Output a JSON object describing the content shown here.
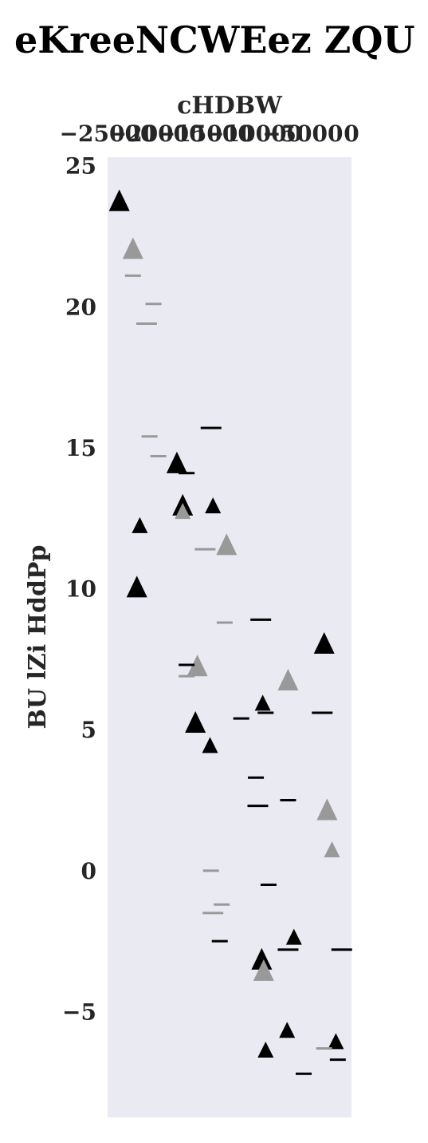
{
  "chart_data": {
    "type": "scatter",
    "title": "eKreeNCWEez ZQU",
    "xlabel": "cHDBW",
    "ylabel": "BU  lZi HddPp",
    "xlim": [
      -25000,
      0
    ],
    "ylim": [
      -8.75,
      25.3
    ],
    "x_ticks": [
      -25000,
      -20000,
      -15000,
      -10000,
      -5000,
      0
    ],
    "x_tick_labels": [
      "−25000",
      "−20000",
      "−15000",
      "−10000",
      "−5000",
      "0"
    ],
    "y_ticks": [
      -5,
      0,
      5,
      10,
      15,
      20,
      25
    ],
    "y_tick_labels": [
      "−5",
      "0",
      "5",
      "10",
      "15",
      "20",
      "25"
    ],
    "x_axis_position": "top",
    "grid": false,
    "colors": {
      "background": "#eaeaf2",
      "dark": "#000000",
      "gray": "#999999",
      "text": "#262626"
    },
    "series": [
      {
        "marker": "triangle-up",
        "color": "#000000",
        "points": [
          {
            "x": -23800,
            "y": 23.7,
            "s": "large"
          },
          {
            "x": -21700,
            "y": 12.2,
            "s": "small"
          },
          {
            "x": -22000,
            "y": 10.0,
            "s": "large"
          },
          {
            "x": -17900,
            "y": 14.4,
            "s": "large"
          },
          {
            "x": -17300,
            "y": 12.9,
            "s": "large"
          },
          {
            "x": -14200,
            "y": 12.9,
            "s": "small"
          },
          {
            "x": -16000,
            "y": 5.2,
            "s": "large"
          },
          {
            "x": -14500,
            "y": 4.4,
            "s": "small"
          },
          {
            "x": -9100,
            "y": 5.9,
            "s": "small"
          },
          {
            "x": -2800,
            "y": 8.0,
            "s": "large"
          },
          {
            "x": -9200,
            "y": -3.2,
            "s": "large"
          },
          {
            "x": -5900,
            "y": -2.4,
            "s": "small"
          },
          {
            "x": -8800,
            "y": -6.4,
            "s": "small"
          },
          {
            "x": -6600,
            "y": -5.7,
            "s": "small"
          },
          {
            "x": -1600,
            "y": -6.1,
            "s": "small"
          }
        ]
      },
      {
        "marker": "triangle-up",
        "color": "#999999",
        "points": [
          {
            "x": -22400,
            "y": 22.0,
            "s": "large"
          },
          {
            "x": -17300,
            "y": 12.7,
            "s": "small"
          },
          {
            "x": -12800,
            "y": 11.5,
            "s": "large"
          },
          {
            "x": -15800,
            "y": 7.2,
            "s": "large"
          },
          {
            "x": -6500,
            "y": 6.7,
            "s": "large"
          },
          {
            "x": -9000,
            "y": -3.6,
            "s": "large"
          },
          {
            "x": -2500,
            "y": 2.1,
            "s": "large"
          },
          {
            "x": -2000,
            "y": 0.7,
            "s": "small"
          }
        ]
      },
      {
        "marker": "hline",
        "color": "#000000",
        "points": [
          {
            "x": -14400,
            "y": 15.7,
            "s": "large"
          },
          {
            "x": -16900,
            "y": 14.1,
            "s": "small"
          },
          {
            "x": -16900,
            "y": 7.3,
            "s": "small"
          },
          {
            "x": -11300,
            "y": 5.4,
            "s": "small"
          },
          {
            "x": -9300,
            "y": 8.9,
            "s": "large"
          },
          {
            "x": -8800,
            "y": 5.6,
            "s": "small"
          },
          {
            "x": -3000,
            "y": 5.6,
            "s": "large"
          },
          {
            "x": -9800,
            "y": 3.3,
            "s": "small"
          },
          {
            "x": -9600,
            "y": 2.3,
            "s": "large"
          },
          {
            "x": -6500,
            "y": 2.5,
            "s": "small"
          },
          {
            "x": -8500,
            "y": -0.5,
            "s": "small"
          },
          {
            "x": -13500,
            "y": -2.5,
            "s": "small"
          },
          {
            "x": -6500,
            "y": -2.8,
            "s": "large"
          },
          {
            "x": -1000,
            "y": -2.8,
            "s": "large"
          },
          {
            "x": -4900,
            "y": -7.2,
            "s": "small"
          },
          {
            "x": -1400,
            "y": -6.7,
            "s": "small"
          }
        ]
      },
      {
        "marker": "hline",
        "color": "#999999",
        "points": [
          {
            "x": -22400,
            "y": 21.1,
            "s": "small"
          },
          {
            "x": -20300,
            "y": 20.1,
            "s": "small"
          },
          {
            "x": -21000,
            "y": 19.4,
            "s": "large"
          },
          {
            "x": -20700,
            "y": 15.4,
            "s": "small"
          },
          {
            "x": -19800,
            "y": 14.7,
            "s": "small"
          },
          {
            "x": -15000,
            "y": 11.4,
            "s": "large"
          },
          {
            "x": -13000,
            "y": 8.8,
            "s": "small"
          },
          {
            "x": -16900,
            "y": 6.9,
            "s": "small"
          },
          {
            "x": -14400,
            "y": 0.0,
            "s": "small"
          },
          {
            "x": -13300,
            "y": -1.2,
            "s": "small"
          },
          {
            "x": -14200,
            "y": -1.5,
            "s": "large"
          },
          {
            "x": -2800,
            "y": -6.3,
            "s": "small"
          }
        ]
      }
    ]
  }
}
